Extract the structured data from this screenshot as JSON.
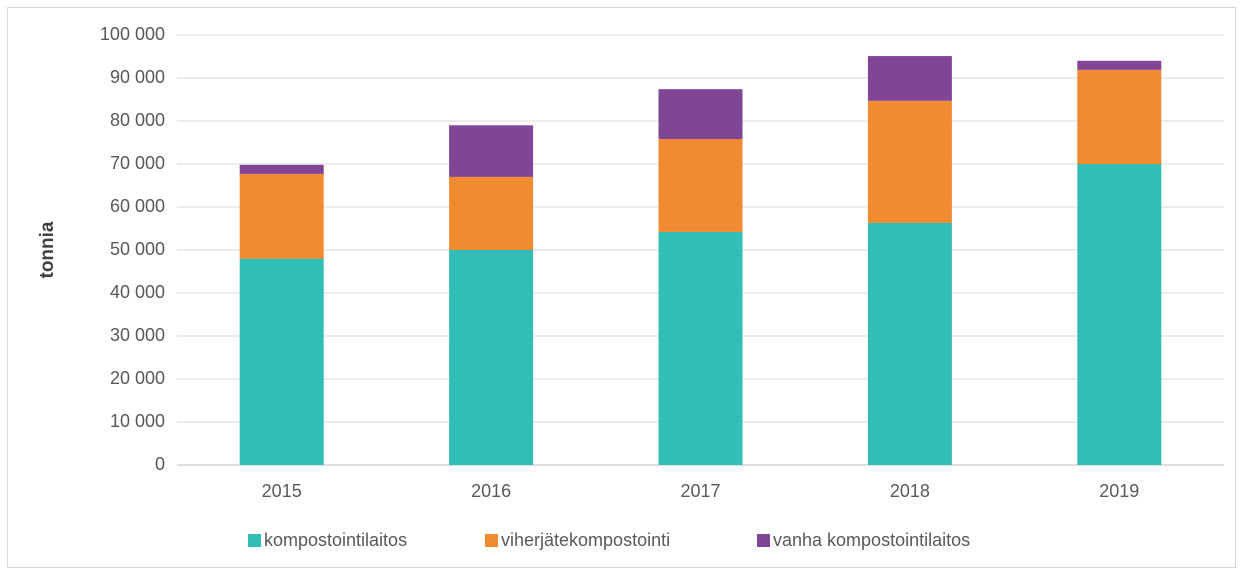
{
  "chart_data": {
    "type": "stacked_bar",
    "y_label": "tonnia",
    "categories": [
      "2015",
      "2016",
      "2017",
      "2018",
      "2019"
    ],
    "series": [
      {
        "name": "kompostointilaitos",
        "color": "#33bdb7",
        "values": [
          48000,
          50000,
          54200,
          56300,
          70000
        ]
      },
      {
        "name": "viherjätekompostointi",
        "color": "#f18b32",
        "values": [
          19700,
          17000,
          21600,
          28400,
          21900
        ]
      },
      {
        "name": "vanha kompostointilaitos",
        "color": "#814596",
        "values": [
          2100,
          12000,
          11600,
          10400,
          2100
        ]
      }
    ],
    "ylim": [
      0,
      100000
    ],
    "yticks": [
      0,
      {
        "value": 10000,
        "label": "10 000"
      },
      {
        "value": 20000,
        "label": "20 000"
      },
      {
        "value": 30000,
        "label": "30 000"
      },
      {
        "value": 40000,
        "label": "40 000"
      },
      {
        "value": 50000,
        "label": "50 000"
      },
      {
        "value": 60000,
        "label": "60 000"
      },
      {
        "value": 70000,
        "label": "70 000"
      },
      {
        "value": 80000,
        "label": "80 000"
      },
      {
        "value": 90000,
        "label": "90 000"
      },
      {
        "value": 100000,
        "label": "100 000"
      }
    ],
    "grid": true,
    "legend": "bottom"
  }
}
